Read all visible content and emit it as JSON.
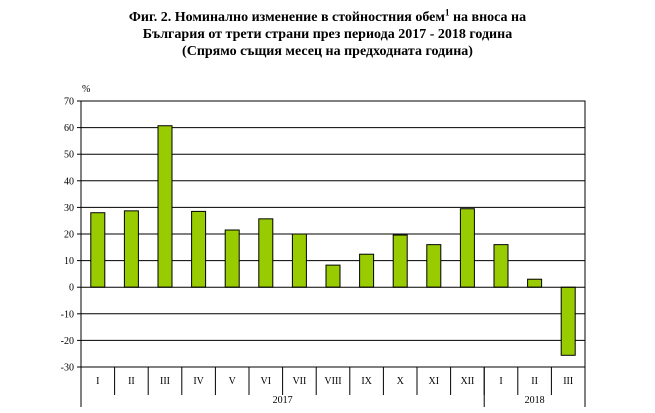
{
  "title": {
    "line1_before_sup": "Фиг. 2. Номинално изменение в стойностния обем",
    "line1_sup": "1",
    "line1_after_sup": " на вноса на",
    "line2": "България от трети страни през периода 2017 - 2018 година",
    "line3": "(Спрямо същия месец на предходната година)"
  },
  "chart_data": {
    "type": "bar",
    "ylabel": "%",
    "ylim": [
      -30,
      70
    ],
    "yticks": [
      70,
      60,
      50,
      40,
      30,
      20,
      10,
      0,
      -10,
      -20,
      -30
    ],
    "grid": true,
    "bar_color": "#99cc00",
    "categories": [
      "I",
      "II",
      "III",
      "IV",
      "V",
      "VI",
      "VII",
      "VIII",
      "IX",
      "X",
      "XI",
      "XII",
      "I",
      "II",
      "III"
    ],
    "values": [
      28,
      28.7,
      60.7,
      28.5,
      21.5,
      25.7,
      20,
      8.3,
      12.4,
      19.6,
      16,
      29.5,
      16,
      3,
      -25.6
    ],
    "groups": [
      {
        "label": "2017",
        "count": 12
      },
      {
        "label": "2018",
        "count": 3
      }
    ]
  }
}
